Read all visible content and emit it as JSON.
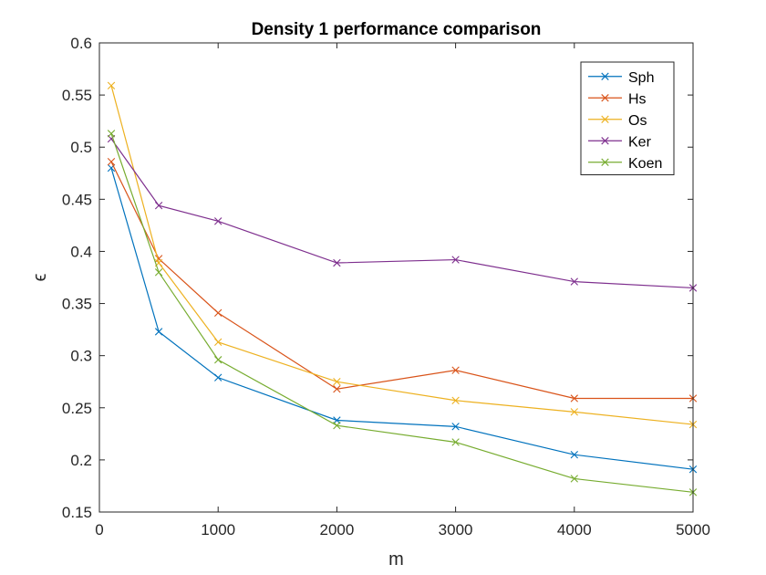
{
  "chart_data": {
    "type": "line",
    "title": "Density 1 performance comparison",
    "xlabel": "m",
    "ylabel": "ϵ",
    "xlim": [
      0,
      5000
    ],
    "ylim": [
      0.15,
      0.6
    ],
    "xticks": [
      0,
      1000,
      2000,
      3000,
      4000,
      5000
    ],
    "xtick_labels": [
      "0",
      "1000",
      "2000",
      "3000",
      "4000",
      "5000"
    ],
    "yticks": [
      0.15,
      0.2,
      0.25,
      0.3,
      0.35,
      0.4,
      0.45,
      0.5,
      0.55,
      0.6
    ],
    "ytick_labels": [
      "0.15",
      "0.2",
      "0.25",
      "0.3",
      "0.35",
      "0.4",
      "0.45",
      "0.5",
      "0.55",
      "0.6"
    ],
    "grid": false,
    "legend_position": "top-right",
    "x": [
      100,
      500,
      1000,
      2000,
      3000,
      4000,
      5000
    ],
    "series": [
      {
        "name": "Sph",
        "color": "#0072BD",
        "values": [
          0.48,
          0.323,
          0.279,
          0.238,
          0.232,
          0.205,
          0.191
        ]
      },
      {
        "name": "Hs",
        "color": "#D95319",
        "values": [
          0.486,
          0.393,
          0.341,
          0.268,
          0.286,
          0.259,
          0.259
        ]
      },
      {
        "name": "Os",
        "color": "#EDB120",
        "values": [
          0.559,
          0.389,
          0.313,
          0.275,
          0.257,
          0.246,
          0.234
        ]
      },
      {
        "name": "Ker",
        "color": "#7E2F8E",
        "values": [
          0.508,
          0.444,
          0.429,
          0.389,
          0.392,
          0.371,
          0.365
        ]
      },
      {
        "name": "Koen",
        "color": "#77AC30",
        "values": [
          0.513,
          0.38,
          0.296,
          0.233,
          0.217,
          0.182,
          0.169
        ]
      }
    ]
  }
}
